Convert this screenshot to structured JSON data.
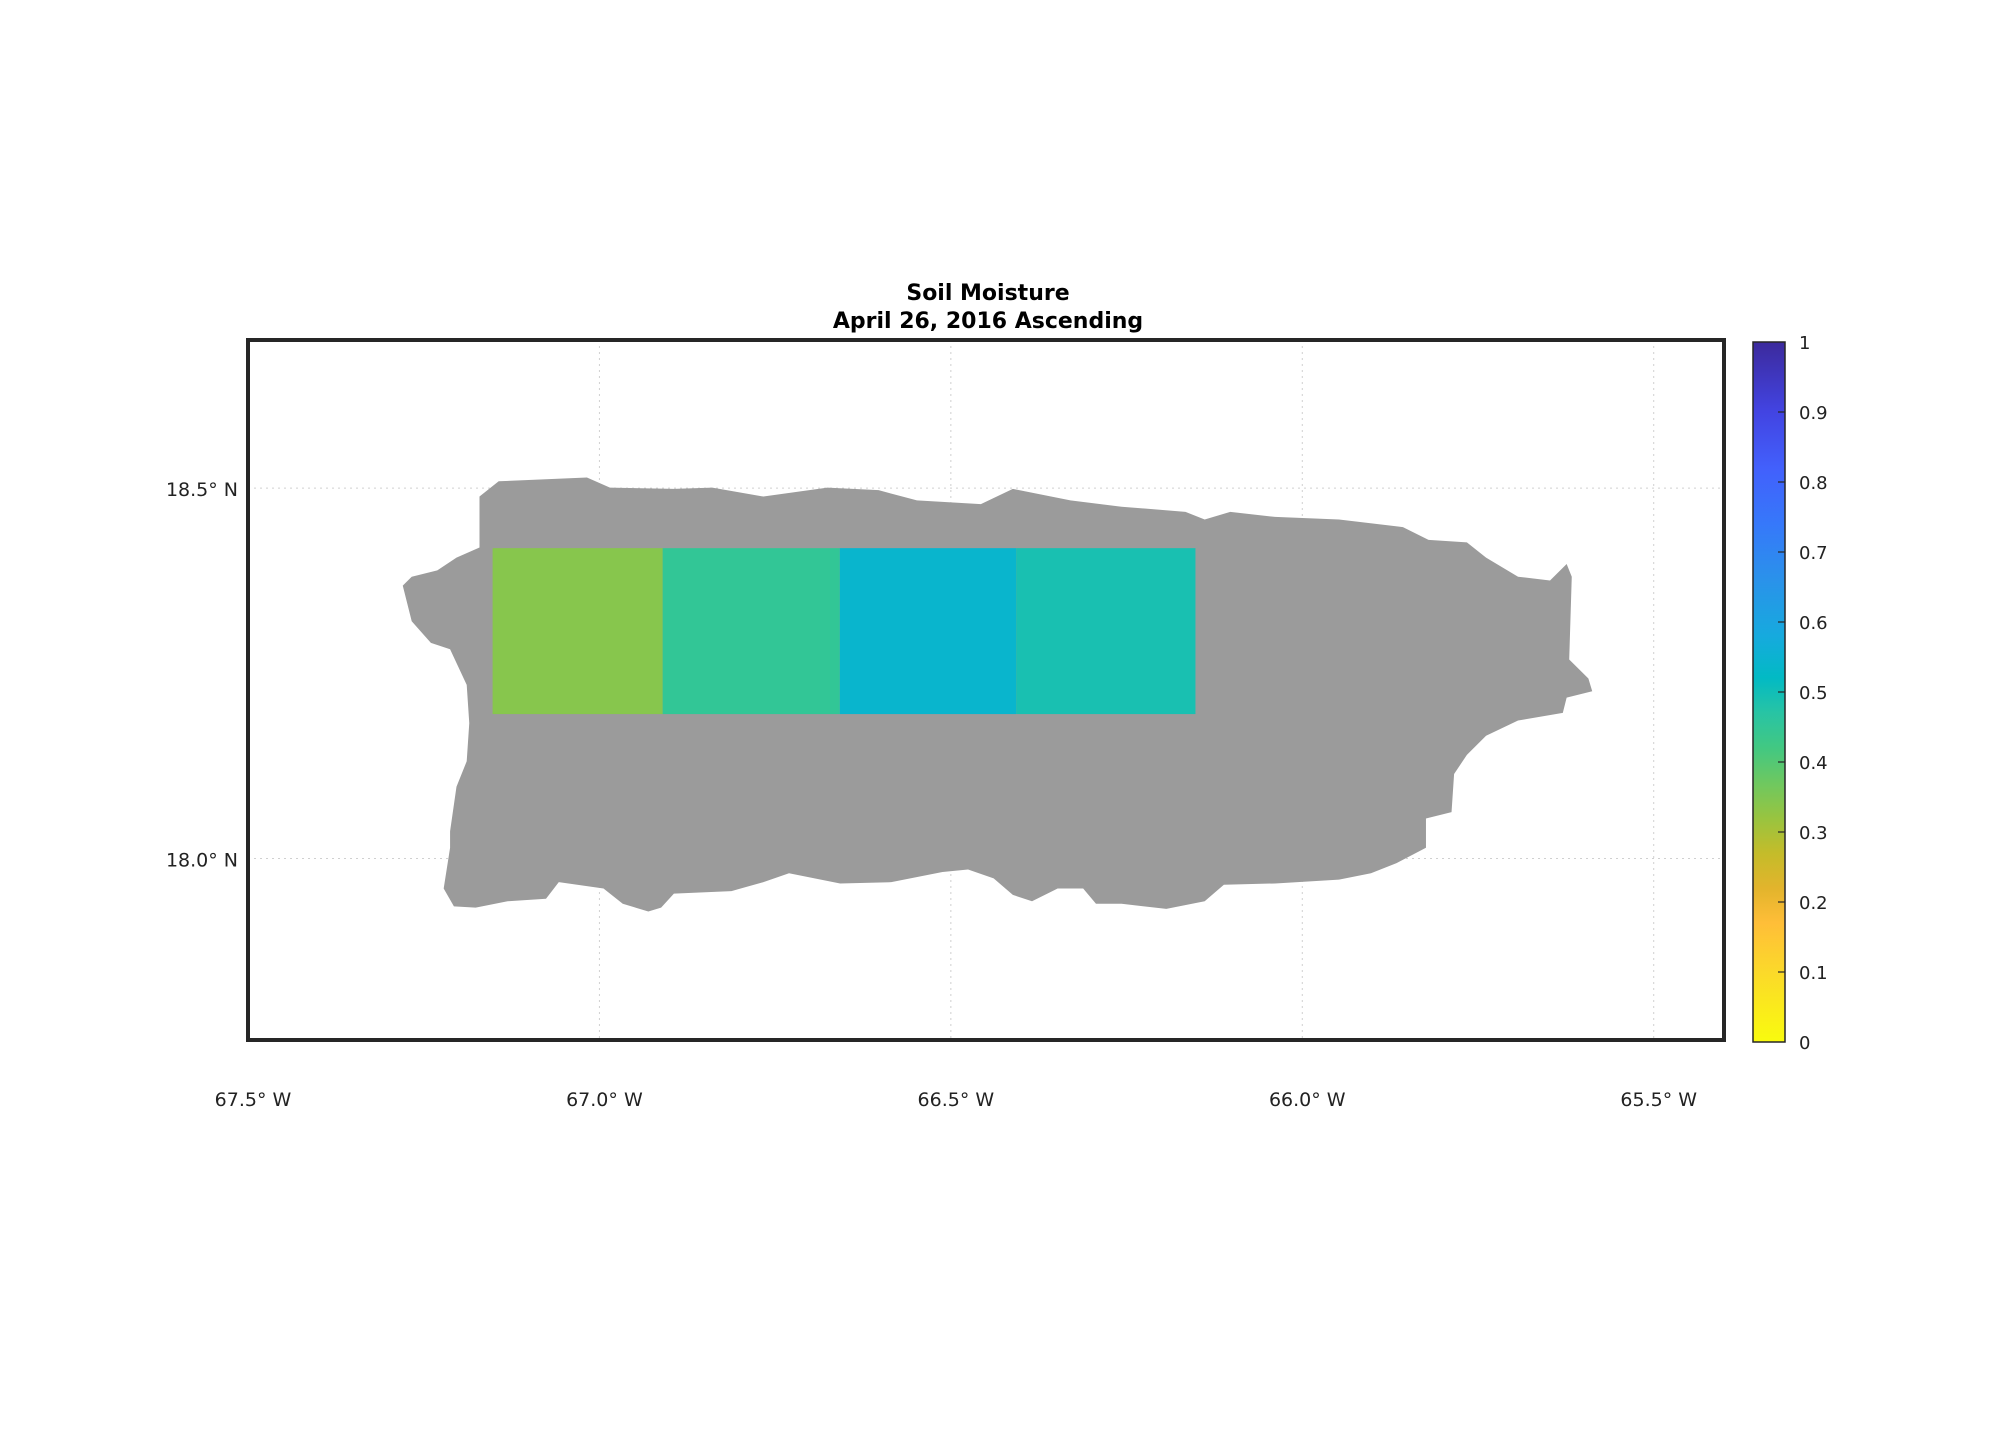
{
  "chart_data": {
    "type": "heatmap",
    "title": "Soil Moisture",
    "subtitle": "April 26, 2016 Ascending",
    "xlabel": "",
    "ylabel": "",
    "xlim": [
      -67.5,
      -65.4
    ],
    "ylim": [
      17.755,
      18.7
    ],
    "grid": true,
    "x_ticks": [
      {
        "value": -67.5,
        "label": "67.5° W"
      },
      {
        "value": -67.0,
        "label": "67.0° W"
      },
      {
        "value": -66.5,
        "label": "66.5° W"
      },
      {
        "value": -66.0,
        "label": "66.0° W"
      },
      {
        "value": -65.5,
        "label": "65.5° W"
      }
    ],
    "y_ticks": [
      {
        "value": 18.5,
        "label": "18.5° N"
      },
      {
        "value": 18.0,
        "label": "18.0° N"
      }
    ],
    "land_color": "#9b9b9b",
    "cells": [
      {
        "lon_min": -67.152,
        "lon_max": -66.91,
        "lat_min": 18.195,
        "lat_max": 18.419,
        "value": 0.34
      },
      {
        "lon_min": -66.91,
        "lon_max": -66.658,
        "lat_min": 18.195,
        "lat_max": 18.419,
        "value": 0.45
      },
      {
        "lon_min": -66.658,
        "lon_max": -66.407,
        "lat_min": 18.195,
        "lat_max": 18.419,
        "value": 0.54
      },
      {
        "lon_min": -66.407,
        "lon_max": -66.152,
        "lat_min": 18.195,
        "lat_max": 18.419,
        "value": 0.49
      }
    ],
    "colorbar": {
      "range": [
        0,
        1
      ],
      "ticks": [
        "0",
        "0.1",
        "0.2",
        "0.3",
        "0.4",
        "0.5",
        "0.6",
        "0.7",
        "0.8",
        "0.9",
        "1"
      ],
      "colormap": "parula"
    }
  }
}
